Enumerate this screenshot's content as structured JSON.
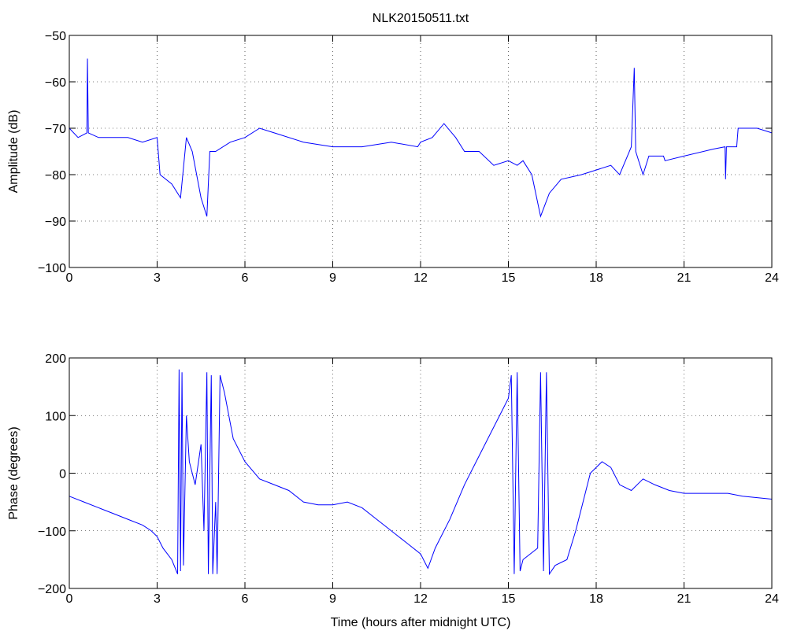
{
  "chart_data": [
    {
      "type": "line",
      "title": "NLK20150511.txt",
      "y_label": "Amplitude (dB)",
      "xlim": [
        0,
        24
      ],
      "xticks": [
        0,
        3,
        6,
        9,
        12,
        15,
        18,
        21,
        24
      ],
      "ylim": [
        -100,
        -50
      ],
      "yticks": [
        {
          "value": -100,
          "label": "−100"
        },
        {
          "value": -90,
          "label": "−90"
        },
        {
          "value": -80,
          "label": "−80"
        },
        {
          "value": -70,
          "label": "−70"
        },
        {
          "value": -60,
          "label": "−60"
        },
        {
          "value": -50,
          "label": "−50"
        }
      ],
      "grid": true,
      "x": [
        0,
        0.3,
        0.6,
        0.62,
        0.65,
        1,
        1.5,
        2,
        2.5,
        3,
        3.1,
        3.5,
        3.8,
        4.0,
        4.2,
        4.5,
        4.7,
        4.8,
        5,
        5.5,
        6,
        6.5,
        7,
        8,
        9,
        10,
        11,
        11.9,
        12,
        12.4,
        12.8,
        13.2,
        13.5,
        14,
        14.5,
        15,
        15.3,
        15.5,
        15.8,
        16.1,
        16.4,
        16.8,
        17.5,
        18,
        18.5,
        18.8,
        19,
        19.2,
        19.3,
        19.35,
        19.6,
        19.8,
        20.3,
        20.35,
        21,
        22,
        22.4,
        22.42,
        22.45,
        22.8,
        22.85,
        23.5,
        24
      ],
      "series": [
        {
          "color": "#0000ff",
          "values": [
            -70,
            -72,
            -71,
            -55,
            -71,
            -72,
            -72,
            -72,
            -73,
            -72,
            -80,
            -82,
            -85,
            -72,
            -75,
            -85,
            -89,
            -75,
            -75,
            -73,
            -72,
            -70,
            -71,
            -73,
            -74,
            -74,
            -73,
            -74,
            -73,
            -72,
            -69,
            -72,
            -75,
            -75,
            -78,
            -77,
            -78,
            -77,
            -80,
            -89,
            -84,
            -81,
            -80,
            -79,
            -78,
            -80,
            -77,
            -74,
            -57,
            -75,
            -80,
            -76,
            -76,
            -77,
            -76,
            -74.5,
            -74,
            -81,
            -74,
            -74,
            -70,
            -70,
            -71
          ]
        }
      ]
    },
    {
      "type": "line",
      "y_label": "Phase (degrees)",
      "x_label": "Time (hours after midnight UTC)",
      "xlim": [
        0,
        24
      ],
      "xticks": [
        0,
        3,
        6,
        9,
        12,
        15,
        18,
        21,
        24
      ],
      "ylim": [
        -200,
        200
      ],
      "yticks": [
        {
          "value": -200,
          "label": "−200"
        },
        {
          "value": -100,
          "label": "−100"
        },
        0,
        100,
        200
      ],
      "grid": true,
      "x": [
        0,
        0.5,
        1,
        1.5,
        2,
        2.5,
        2.8,
        3,
        3.2,
        3.5,
        3.7,
        3.75,
        3.8,
        3.85,
        3.9,
        4.0,
        4.1,
        4.3,
        4.5,
        4.6,
        4.7,
        4.75,
        4.85,
        4.9,
        5.0,
        5.05,
        5.15,
        5.3,
        5.6,
        6,
        6.5,
        7,
        7.5,
        8,
        8.5,
        9,
        9.5,
        10,
        10.5,
        11,
        11.5,
        12,
        12.25,
        12.5,
        13,
        13.5,
        14,
        14.5,
        15,
        15.1,
        15.2,
        15.3,
        15.4,
        15.5,
        16,
        16.1,
        16.2,
        16.3,
        16.4,
        16.6,
        17,
        17.3,
        17.5,
        17.8,
        18.2,
        18.5,
        18.8,
        19.2,
        19.6,
        20,
        20.5,
        21,
        22,
        22.5,
        23,
        24
      ],
      "series": [
        {
          "color": "#0000ff",
          "values": [
            -40,
            -50,
            -60,
            -70,
            -80,
            -90,
            -100,
            -110,
            -130,
            -150,
            -175,
            180,
            -170,
            175,
            -160,
            100,
            20,
            -20,
            50,
            -100,
            175,
            -175,
            170,
            -175,
            -50,
            -175,
            170,
            140,
            60,
            20,
            -10,
            -20,
            -30,
            -50,
            -55,
            -55,
            -50,
            -60,
            -80,
            -100,
            -120,
            -140,
            -165,
            -130,
            -80,
            -20,
            30,
            80,
            130,
            170,
            -175,
            175,
            -170,
            -150,
            -130,
            175,
            -170,
            175,
            -175,
            -160,
            -150,
            -100,
            -60,
            0,
            20,
            10,
            -20,
            -30,
            -10,
            -20,
            -30,
            -35,
            -35,
            -35,
            -40,
            -45
          ]
        }
      ]
    }
  ]
}
